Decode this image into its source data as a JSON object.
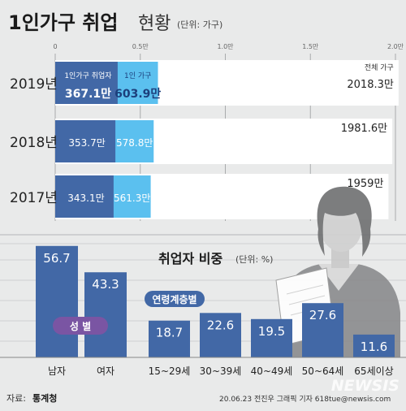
{
  "header": {
    "title_bold": "1인가구 취업",
    "title_light": "현황",
    "unit": "(단위: 가구)"
  },
  "chart_data": [
    {
      "type": "bar",
      "orientation": "horizontal",
      "stacking": "overlay",
      "axis_ticks": [
        "0",
        "0.5만",
        "1.0만",
        "1.5만",
        "2.0만"
      ],
      "xlim": [
        0,
        2.0
      ],
      "x_unit": "만",
      "categories": [
        "2019년",
        "2018년",
        "2017년"
      ],
      "series": [
        {
          "name": "1인가구 취업자",
          "values": [
            367.1,
            353.7,
            343.1
          ],
          "labels": [
            "367.1만",
            "353.7만",
            "343.1만"
          ],
          "color": "#4268a6"
        },
        {
          "name": "1인 가구",
          "values": [
            603.9,
            578.8,
            561.3
          ],
          "labels": [
            "603.9만",
            "578.8만",
            "561.3만"
          ],
          "color": "#5bc0ef"
        },
        {
          "name": "전체 가구",
          "values": [
            2018.3,
            1981.6,
            1959
          ],
          "labels": [
            "2018.3만",
            "1981.6만",
            "1959만"
          ],
          "color": "#ffffff"
        }
      ]
    },
    {
      "type": "bar",
      "title": "취업자 비중",
      "unit": "(단위: %)",
      "groups": [
        {
          "name": "성 별",
          "categories": [
            "남자",
            "여자"
          ],
          "values": [
            56.7,
            43.3
          ],
          "labels": [
            "56.7",
            "43.3"
          ]
        },
        {
          "name": "연령계층별",
          "categories": [
            "15~29세",
            "30~39세",
            "40~49세",
            "50~64세",
            "65세이상"
          ],
          "values": [
            18.7,
            22.6,
            19.5,
            27.6,
            11.6
          ],
          "labels": [
            "18.7",
            "22.6",
            "19.5",
            "27.6",
            "11.6"
          ]
        }
      ],
      "color": "#4268a6"
    }
  ],
  "footer": {
    "source_label": "자료:",
    "source_name": "통계청",
    "credit": "20.06.23 전진우 그래픽 기자 618tue@newsis.com",
    "watermark": "NEWSIS"
  }
}
